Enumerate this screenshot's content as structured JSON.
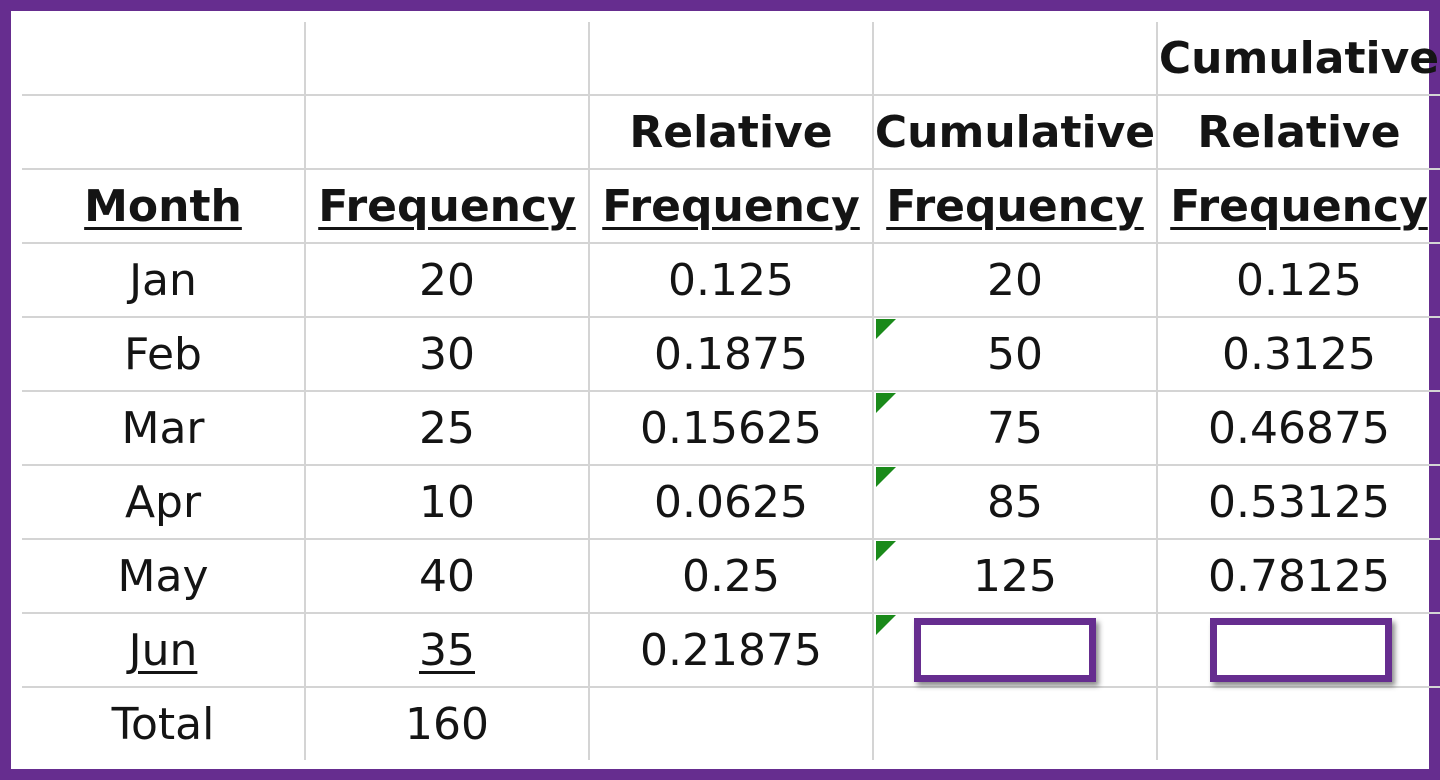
{
  "headers": {
    "row1": {
      "col5": "Cumulative"
    },
    "row2": {
      "col3": "Relative",
      "col4": "Cumulative",
      "col5": "Relative"
    },
    "row3": {
      "col1": "Month",
      "col2": "Frequency",
      "col3": "Frequency",
      "col4": "Frequency",
      "col5": "Frequency"
    }
  },
  "rows": [
    {
      "month": "Jan",
      "frequency": "20",
      "relative_frequency": "0.125",
      "cumulative_frequency": "20",
      "cumulative_relative_frequency": "0.125"
    },
    {
      "month": "Feb",
      "frequency": "30",
      "relative_frequency": "0.1875",
      "cumulative_frequency": "50",
      "cumulative_relative_frequency": "0.3125"
    },
    {
      "month": "Mar",
      "frequency": "25",
      "relative_frequency": "0.15625",
      "cumulative_frequency": "75",
      "cumulative_relative_frequency": "0.46875"
    },
    {
      "month": "Apr",
      "frequency": "10",
      "relative_frequency": "0.0625",
      "cumulative_frequency": "85",
      "cumulative_relative_frequency": "0.53125"
    },
    {
      "month": "May",
      "frequency": "40",
      "relative_frequency": "0.25",
      "cumulative_frequency": "125",
      "cumulative_relative_frequency": "0.78125"
    },
    {
      "month": "Jun",
      "frequency": "35",
      "relative_frequency": "0.21875",
      "cumulative_frequency": "",
      "cumulative_relative_frequency": ""
    }
  ],
  "total": {
    "label": "Total",
    "frequency": "160"
  },
  "colors": {
    "frame": "#662d8f",
    "answer_box": "#662d8f",
    "error_flag": "#1a8a1a",
    "gridline": "#d4d4d4"
  },
  "icons": {
    "error_flag": "green-triangle-indicator"
  }
}
